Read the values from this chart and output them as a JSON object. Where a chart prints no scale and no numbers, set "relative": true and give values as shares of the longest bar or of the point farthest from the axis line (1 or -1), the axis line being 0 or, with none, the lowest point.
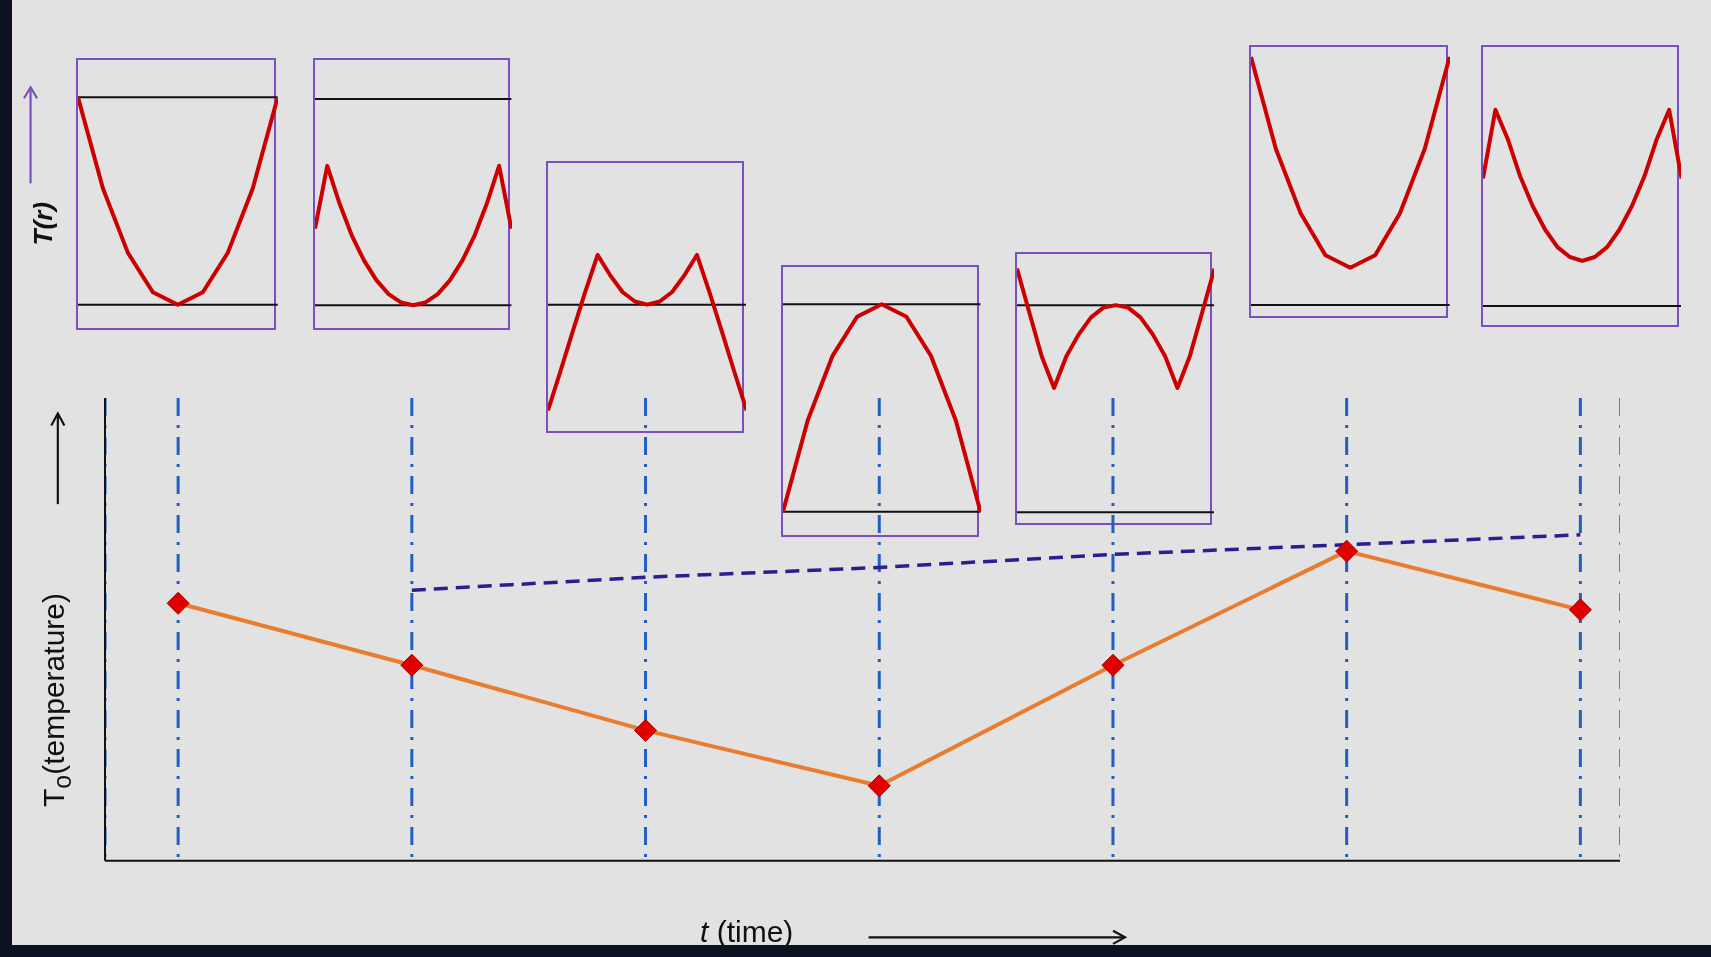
{
  "chart_data": [
    {
      "type": "line",
      "ylabel": "T(r)",
      "relative": true,
      "categories": [
        null,
        null,
        null,
        null,
        null,
        null,
        null,
        null,
        null
      ],
      "series": [
        {
          "color": "#cc0000",
          "values": [
            1,
            0.56,
            0.25,
            0.06,
            0,
            0.06,
            0.25,
            0.56,
            1
          ]
        }
      ],
      "ref_lines": [
        {
          "axis": "y",
          "value": 0,
          "color": "#111111"
        },
        {
          "axis": "y",
          "value": 1,
          "color": "#111111"
        }
      ]
    },
    {
      "type": "line",
      "relative": true,
      "categories": [
        null,
        null,
        null,
        null,
        null,
        null,
        null,
        null,
        null,
        null,
        null,
        null,
        null,
        null,
        null,
        null,
        null
      ],
      "series": [
        {
          "color": "#cc0000",
          "values": [
            0.55,
            1,
            0.73,
            0.5,
            0.32,
            0.18,
            0.08,
            0.02,
            0,
            0.02,
            0.08,
            0.18,
            0.32,
            0.5,
            0.73,
            1,
            0.55
          ]
        }
      ],
      "ref_lines": [
        {
          "axis": "y",
          "value": 0,
          "color": "#111111"
        },
        {
          "axis": "y",
          "value": 1.48,
          "color": "#111111"
        }
      ]
    },
    {
      "type": "line",
      "relative": true,
      "categories": [
        null,
        null,
        null,
        null,
        null,
        null,
        null,
        null,
        null,
        null,
        null,
        null,
        null,
        null,
        null,
        null,
        null
      ],
      "series": [
        {
          "color": "#cc0000",
          "values": [
            -1,
            -0.63,
            -0.25,
            0.12,
            0.47,
            0.28,
            0.12,
            0.03,
            0,
            0.03,
            0.12,
            0.28,
            0.47,
            0.12,
            -0.25,
            -0.63,
            -1
          ]
        }
      ],
      "ref_lines": [
        {
          "axis": "y",
          "value": 0,
          "color": "#111111"
        }
      ]
    },
    {
      "type": "line",
      "relative": true,
      "categories": [
        null,
        null,
        null,
        null,
        null,
        null,
        null,
        null,
        null
      ],
      "series": [
        {
          "color": "#cc0000",
          "values": [
            0,
            0.44,
            0.75,
            0.94,
            1,
            0.94,
            0.75,
            0.44,
            0
          ]
        }
      ],
      "ref_lines": [
        {
          "axis": "y",
          "value": 0,
          "color": "#111111"
        },
        {
          "axis": "y",
          "value": 1,
          "color": "#111111"
        }
      ]
    },
    {
      "type": "line",
      "relative": true,
      "categories": [
        null,
        null,
        null,
        null,
        null,
        null,
        null,
        null,
        null,
        null,
        null,
        null,
        null,
        null,
        null,
        null,
        null
      ],
      "series": [
        {
          "color": "#cc0000",
          "values": [
            1,
            0.82,
            0.64,
            0.51,
            0.64,
            0.73,
            0.8,
            0.84,
            0.85,
            0.84,
            0.8,
            0.73,
            0.64,
            0.51,
            0.64,
            0.82,
            1
          ]
        }
      ],
      "ref_lines": [
        {
          "axis": "y",
          "value": 0,
          "color": "#111111"
        },
        {
          "axis": "y",
          "value": 0.85,
          "color": "#111111"
        }
      ]
    },
    {
      "type": "line",
      "relative": true,
      "categories": [
        null,
        null,
        null,
        null,
        null,
        null,
        null,
        null,
        null
      ],
      "series": [
        {
          "color": "#cc0000",
          "values": [
            1,
            0.63,
            0.37,
            0.2,
            0.15,
            0.2,
            0.37,
            0.63,
            1
          ]
        }
      ],
      "ref_lines": [
        {
          "axis": "y",
          "value": 0,
          "color": "#111111"
        }
      ]
    },
    {
      "type": "line",
      "relative": true,
      "categories": [
        null,
        null,
        null,
        null,
        null,
        null,
        null,
        null,
        null,
        null,
        null,
        null,
        null,
        null,
        null,
        null,
        null
      ],
      "series": [
        {
          "color": "#cc0000",
          "values": [
            0.65,
            1,
            0.85,
            0.66,
            0.51,
            0.39,
            0.3,
            0.25,
            0.23,
            0.25,
            0.3,
            0.39,
            0.51,
            0.66,
            0.85,
            1,
            0.65
          ]
        }
      ],
      "ref_lines": [
        {
          "axis": "y",
          "value": 0,
          "color": "#111111"
        }
      ]
    },
    {
      "type": "line",
      "xlabel": "t (time)",
      "ylabel": "T$_{o}$(temperature)",
      "categories": [
        null,
        null,
        null,
        null,
        null,
        null,
        null
      ],
      "relative": true,
      "grid": "x",
      "series": [
        {
          "color": "#e87d2f",
          "values": [
            0.79,
            0.6,
            0.4,
            0.23,
            0.6,
            0.95,
            0.77
          ],
          "marker": "diamond",
          "line_style": "solid"
        },
        {
          "color": "#2b1e8f",
          "values": [
            null,
            0.83,
            0.87,
            0.9,
            0.94,
            null,
            1
          ],
          "marker": "none",
          "line_style": "dashed"
        }
      ]
    }
  ]
}
